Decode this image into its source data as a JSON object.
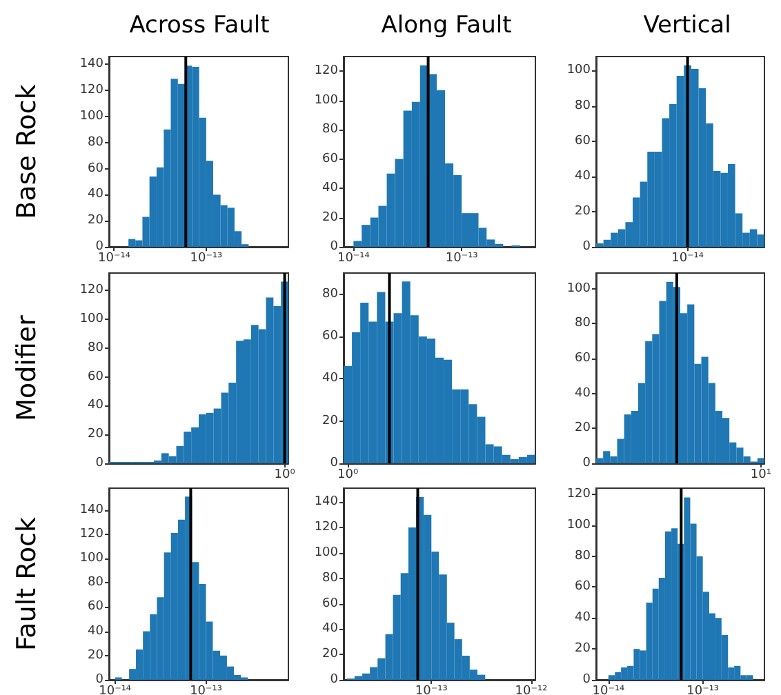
{
  "chart_data": [
    {
      "type": "histogram",
      "title": "Across Fault",
      "ylabel": "Base Rock",
      "log": "x",
      "color": "#1f77b4",
      "bins": [
        1.43e-14,
        1.7e-14,
        2.03e-14,
        2.42e-14,
        2.89e-14,
        3.46e-14,
        4.12e-14,
        4.92e-14,
        5.88e-14,
        7.02e-14,
        8.38e-14,
        1e-13,
        1.19e-13,
        1.43e-13,
        1.7e-13,
        2.03e-13,
        2.42e-13,
        2.89e-13
      ],
      "values": [
        6,
        5,
        23,
        54,
        61,
        90,
        129,
        125,
        139,
        138,
        99,
        66,
        40,
        32,
        30,
        12,
        2
      ],
      "xlim": [
        8.8e-15,
        7.8e-13
      ],
      "xticks": [
        {
          "value": 1e-14,
          "label": "10⁻¹⁴"
        },
        {
          "value": 1e-13,
          "label": "10⁻¹³"
        }
      ],
      "ylim": [
        0,
        146
      ],
      "yticks": [
        0,
        20,
        40,
        60,
        80,
        100,
        120,
        140
      ],
      "ref_lines": [
        {
          "axis": "x",
          "value": 6e-14,
          "color": "#000000"
        }
      ]
    },
    {
      "type": "histogram",
      "title": "Along Fault",
      "log": "x",
      "color": "#1f77b4",
      "bins": [
        1e-14,
        1.19e-14,
        1.43e-14,
        1.7e-14,
        2.03e-14,
        2.42e-14,
        2.89e-14,
        3.46e-14,
        4.12e-14,
        4.92e-14,
        5.88e-14,
        7.02e-14,
        8.38e-14,
        1e-13,
        1.19e-13,
        1.43e-13,
        1.7e-13,
        2.03e-13,
        2.42e-13,
        2.89e-13,
        3.46e-13
      ],
      "values": [
        4,
        15,
        20,
        28,
        50,
        60,
        93,
        99,
        124,
        118,
        107,
        57,
        49,
        23,
        23,
        13,
        5,
        2,
        0,
        1
      ],
      "xlim": [
        8.1e-15,
        4.8e-13
      ],
      "xticks": [
        {
          "value": 1e-14,
          "label": "10⁻¹⁴"
        },
        {
          "value": 1e-13,
          "label": "10⁻¹³"
        }
      ],
      "ylim": [
        0,
        130
      ],
      "yticks": [
        0,
        20,
        40,
        60,
        80,
        100,
        120
      ],
      "ref_lines": [
        {
          "axis": "x",
          "value": 4.9e-14,
          "color": "#000000"
        }
      ]
    },
    {
      "type": "bar",
      "title": "Vertical",
      "color": "#1f77b4",
      "categories": [
        null,
        null,
        null,
        null,
        null,
        null,
        null,
        null,
        null,
        null,
        null,
        null,
        "10⁻¹⁴",
        null,
        null,
        null,
        null,
        null,
        null,
        null,
        null,
        null,
        null
      ],
      "values": [
        2,
        4,
        8,
        10,
        14,
        28,
        37,
        54,
        54,
        73,
        81,
        97,
        103,
        101,
        90,
        70,
        43,
        42,
        47,
        19,
        8,
        10,
        7
      ],
      "ylim": [
        0,
        108
      ],
      "yticks": [
        0,
        20,
        40,
        60,
        80,
        100
      ],
      "ref_lines": [
        {
          "axis": "x",
          "value": "10⁻¹⁴",
          "color": "#000000"
        }
      ]
    },
    {
      "type": "bar",
      "ylabel": "Modifier",
      "color": "#1f77b4",
      "categories": [
        null,
        null,
        null,
        null,
        null,
        null,
        null,
        null,
        null,
        null,
        null,
        null,
        null,
        null,
        null,
        null,
        null,
        null,
        null,
        null,
        null,
        null,
        null,
        "10⁰"
      ],
      "values": [
        1,
        1,
        1,
        1,
        1,
        1,
        2,
        7,
        5,
        12,
        22,
        25,
        34,
        35,
        38,
        49,
        56,
        85,
        86,
        96,
        93,
        115,
        109,
        126
      ],
      "ylim": [
        0,
        132
      ],
      "yticks": [
        0,
        20,
        40,
        60,
        80,
        100,
        120
      ]
    },
    {
      "type": "bar",
      "color": "#1f77b4",
      "categories": [
        "10⁰",
        null,
        null,
        null,
        null,
        null,
        null,
        null,
        null,
        null,
        null,
        null,
        null,
        null,
        null,
        null,
        null,
        null,
        null,
        null,
        null,
        null,
        null
      ],
      "values": [
        46,
        62,
        76,
        67,
        81,
        67,
        71,
        86,
        70,
        60,
        59,
        50,
        49,
        35,
        35,
        28,
        22,
        9,
        8,
        4,
        2,
        3,
        4
      ],
      "ylim": [
        0,
        90
      ],
      "yticks": [
        0,
        20,
        40,
        60,
        80
      ]
    },
    {
      "type": "bar",
      "color": "#1f77b4",
      "categories": [
        null,
        null,
        null,
        null,
        null,
        null,
        null,
        null,
        null,
        null,
        null,
        null,
        null,
        null,
        null,
        null,
        null,
        null,
        null,
        null,
        null,
        null,
        null,
        "10¹"
      ],
      "values": [
        3,
        7,
        4,
        14,
        28,
        30,
        46,
        70,
        74,
        93,
        104,
        101,
        86,
        91,
        57,
        61,
        46,
        30,
        26,
        12,
        9,
        4,
        1,
        3
      ],
      "ylim": [
        0,
        109
      ],
      "yticks": [
        0,
        20,
        40,
        60,
        80,
        100
      ]
    },
    {
      "type": "histogram",
      "ylabel": "Fault Rock",
      "log": "x",
      "color": "#1f77b4",
      "bins": [
        1e-14,
        1.19e-14,
        1.43e-14,
        1.7e-14,
        2.03e-14,
        2.42e-14,
        2.89e-14,
        3.46e-14,
        4.12e-14,
        4.92e-14,
        5.88e-14,
        7.02e-14,
        8.38e-14,
        1e-13,
        1.19e-13,
        1.43e-13,
        1.7e-13,
        2.03e-13,
        2.42e-13,
        2.89e-13
      ],
      "values": [
        2,
        0,
        9,
        25,
        40,
        54,
        68,
        105,
        121,
        132,
        151,
        97,
        79,
        48,
        24,
        20,
        11,
        4,
        2
      ],
      "xlim": [
        8.6e-15,
        8.05e-13
      ],
      "xticks": [
        {
          "value": 1e-14,
          "label": "10⁻¹⁴"
        },
        {
          "value": 1e-13,
          "label": "10⁻¹³"
        }
      ],
      "ylim": [
        0,
        158
      ],
      "yticks": [
        0,
        20,
        40,
        60,
        80,
        100,
        120,
        140
      ],
      "ref_lines": [
        {
          "axis": "x",
          "value": 6.8e-14,
          "color": "#000000"
        }
      ]
    },
    {
      "type": "histogram",
      "log": "x",
      "color": "#1f77b4",
      "bins": [
        1.43e-14,
        1.7e-14,
        2.03e-14,
        2.42e-14,
        2.89e-14,
        3.46e-14,
        4.12e-14,
        4.92e-14,
        5.88e-14,
        7.02e-14,
        8.38e-14,
        1e-13,
        1.19e-13,
        1.43e-13,
        1.7e-13,
        2.03e-13,
        2.42e-13,
        2.89e-13,
        3.46e-13
      ],
      "values": [
        1,
        3,
        5,
        10,
        17,
        36,
        67,
        84,
        120,
        144,
        130,
        101,
        83,
        45,
        32,
        19,
        8,
        4
      ],
      "xlim": [
        1.32e-14,
        1.1e-12
      ],
      "xticks": [
        {
          "value": 1e-13,
          "label": "10⁻¹³"
        },
        {
          "value": 1e-12,
          "label": "10⁻¹²"
        }
      ],
      "ylim": [
        0,
        151
      ],
      "yticks": [
        0,
        20,
        40,
        60,
        80,
        100,
        120,
        140
      ],
      "ref_lines": [
        {
          "axis": "x",
          "value": 7.3e-14,
          "color": "#000000"
        }
      ]
    },
    {
      "type": "histogram",
      "log": "x",
      "color": "#1f77b4",
      "bins": [
        1e-14,
        1.17e-14,
        1.36e-14,
        1.58e-14,
        1.85e-14,
        2.15e-14,
        2.51e-14,
        2.93e-14,
        3.41e-14,
        3.98e-14,
        4.64e-14,
        5.41e-14,
        6.31e-14,
        7.36e-14,
        8.58e-14,
        1e-13,
        1.17e-13,
        1.36e-13,
        1.58e-13,
        1.85e-13,
        2.15e-13,
        2.51e-13,
        2.93e-13,
        3.41e-13
      ],
      "values": [
        3,
        5,
        8,
        9,
        20,
        19,
        50,
        59,
        66,
        96,
        98,
        88,
        118,
        101,
        80,
        57,
        43,
        40,
        29,
        8,
        9,
        3,
        3
      ],
      "xlim": [
        7.4e-15,
        4.5e-13
      ],
      "xticks": [
        {
          "value": 1e-14,
          "label": "10⁻¹⁴"
        },
        {
          "value": 1e-13,
          "label": "10⁻¹³"
        }
      ],
      "ylim": [
        0,
        124
      ],
      "yticks": [
        0,
        20,
        40,
        60,
        80,
        100,
        120
      ],
      "ref_lines": [
        {
          "axis": "x",
          "value": 5.9e-14,
          "color": "#000000"
        }
      ]
    }
  ]
}
